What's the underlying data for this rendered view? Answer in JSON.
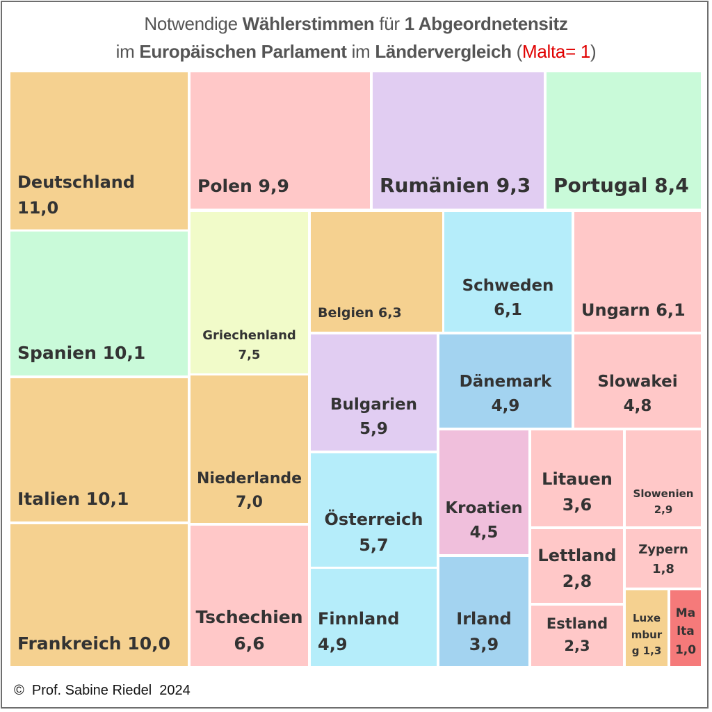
{
  "chart_data": {
    "type": "treemap",
    "title_segments": [
      {
        "text": "Notwendige ",
        "bold": false
      },
      {
        "text": "Wählerstimmen",
        "bold": true
      },
      {
        "text": " für ",
        "bold": false
      },
      {
        "text": "1 Abgeordnetensitz",
        "bold": true
      }
    ],
    "subtitle_segments": [
      {
        "text": "im ",
        "bold": false
      },
      {
        "text": "Europäischen Parlament",
        "bold": true
      },
      {
        "text": " im ",
        "bold": false
      },
      {
        "text": "Ländervergleich",
        "bold": true
      },
      {
        "text": " (",
        "bold": false
      },
      {
        "text": "Malta= 1",
        "bold": false,
        "red": true
      },
      {
        "text": ")",
        "bold": false
      }
    ],
    "items": [
      {
        "name": "Deutschland",
        "value": "11,0",
        "color": "#F5D190"
      },
      {
        "name": "Polen",
        "value": "9,9",
        "color": "#FFC8C8"
      },
      {
        "name": "Rumänien",
        "value": "9,3",
        "color": "#E1CDF2"
      },
      {
        "name": "Portugal",
        "value": "8,4",
        "color": "#C9FAD9"
      },
      {
        "name": "Spanien",
        "value": "10,1",
        "color": "#C9FAD9"
      },
      {
        "name": "Italien",
        "value": "10,1",
        "color": "#F5D190"
      },
      {
        "name": "Frankreich",
        "value": "10,0",
        "color": "#F5D190"
      },
      {
        "name": "Griechenland",
        "value": "7,5",
        "color": "#F1FBC9"
      },
      {
        "name": "Niederlande",
        "value": "7,0",
        "color": "#F5D190"
      },
      {
        "name": "Tschechien",
        "value": "6,6",
        "color": "#FFC8C8"
      },
      {
        "name": "Belgien",
        "value": "6,3",
        "color": "#F5D190"
      },
      {
        "name": "Schweden",
        "value": "6,1",
        "color": "#B5EDFA"
      },
      {
        "name": "Ungarn",
        "value": "6,1",
        "color": "#FFC8C8"
      },
      {
        "name": "Bulgarien",
        "value": "5,9",
        "color": "#E1CDF2"
      },
      {
        "name": "Dänemark",
        "value": "4,9",
        "color": "#A3D3F0"
      },
      {
        "name": "Slowakei",
        "value": "4,8",
        "color": "#FFC8C8"
      },
      {
        "name": "Österreich",
        "value": "5,7",
        "color": "#B5EDFA"
      },
      {
        "name": "Finnland",
        "value": "4,9",
        "color": "#B5EDFA"
      },
      {
        "name": "Kroatien",
        "value": "4,5",
        "color": "#F0BFDC"
      },
      {
        "name": "Irland",
        "value": "3,9",
        "color": "#A3D3F0"
      },
      {
        "name": "Litauen",
        "value": "3,6",
        "color": "#FFC8C8"
      },
      {
        "name": "Slowenien",
        "value": "2,9",
        "color": "#FFC8C8"
      },
      {
        "name": "Lettland",
        "value": "2,8",
        "color": "#FFC8C8"
      },
      {
        "name": "Zypern",
        "value": "1,8",
        "color": "#FFC8C8"
      },
      {
        "name": "Estland",
        "value": "2,3",
        "color": "#FFC8C8"
      },
      {
        "name": "Luxe mbur g",
        "value": "1,3",
        "color": "#F5D190"
      },
      {
        "name": "Ma lta",
        "value": "1,0",
        "color": "#F57A7A"
      }
    ]
  },
  "footer": "©  Prof. Sabine Riedel  2024"
}
